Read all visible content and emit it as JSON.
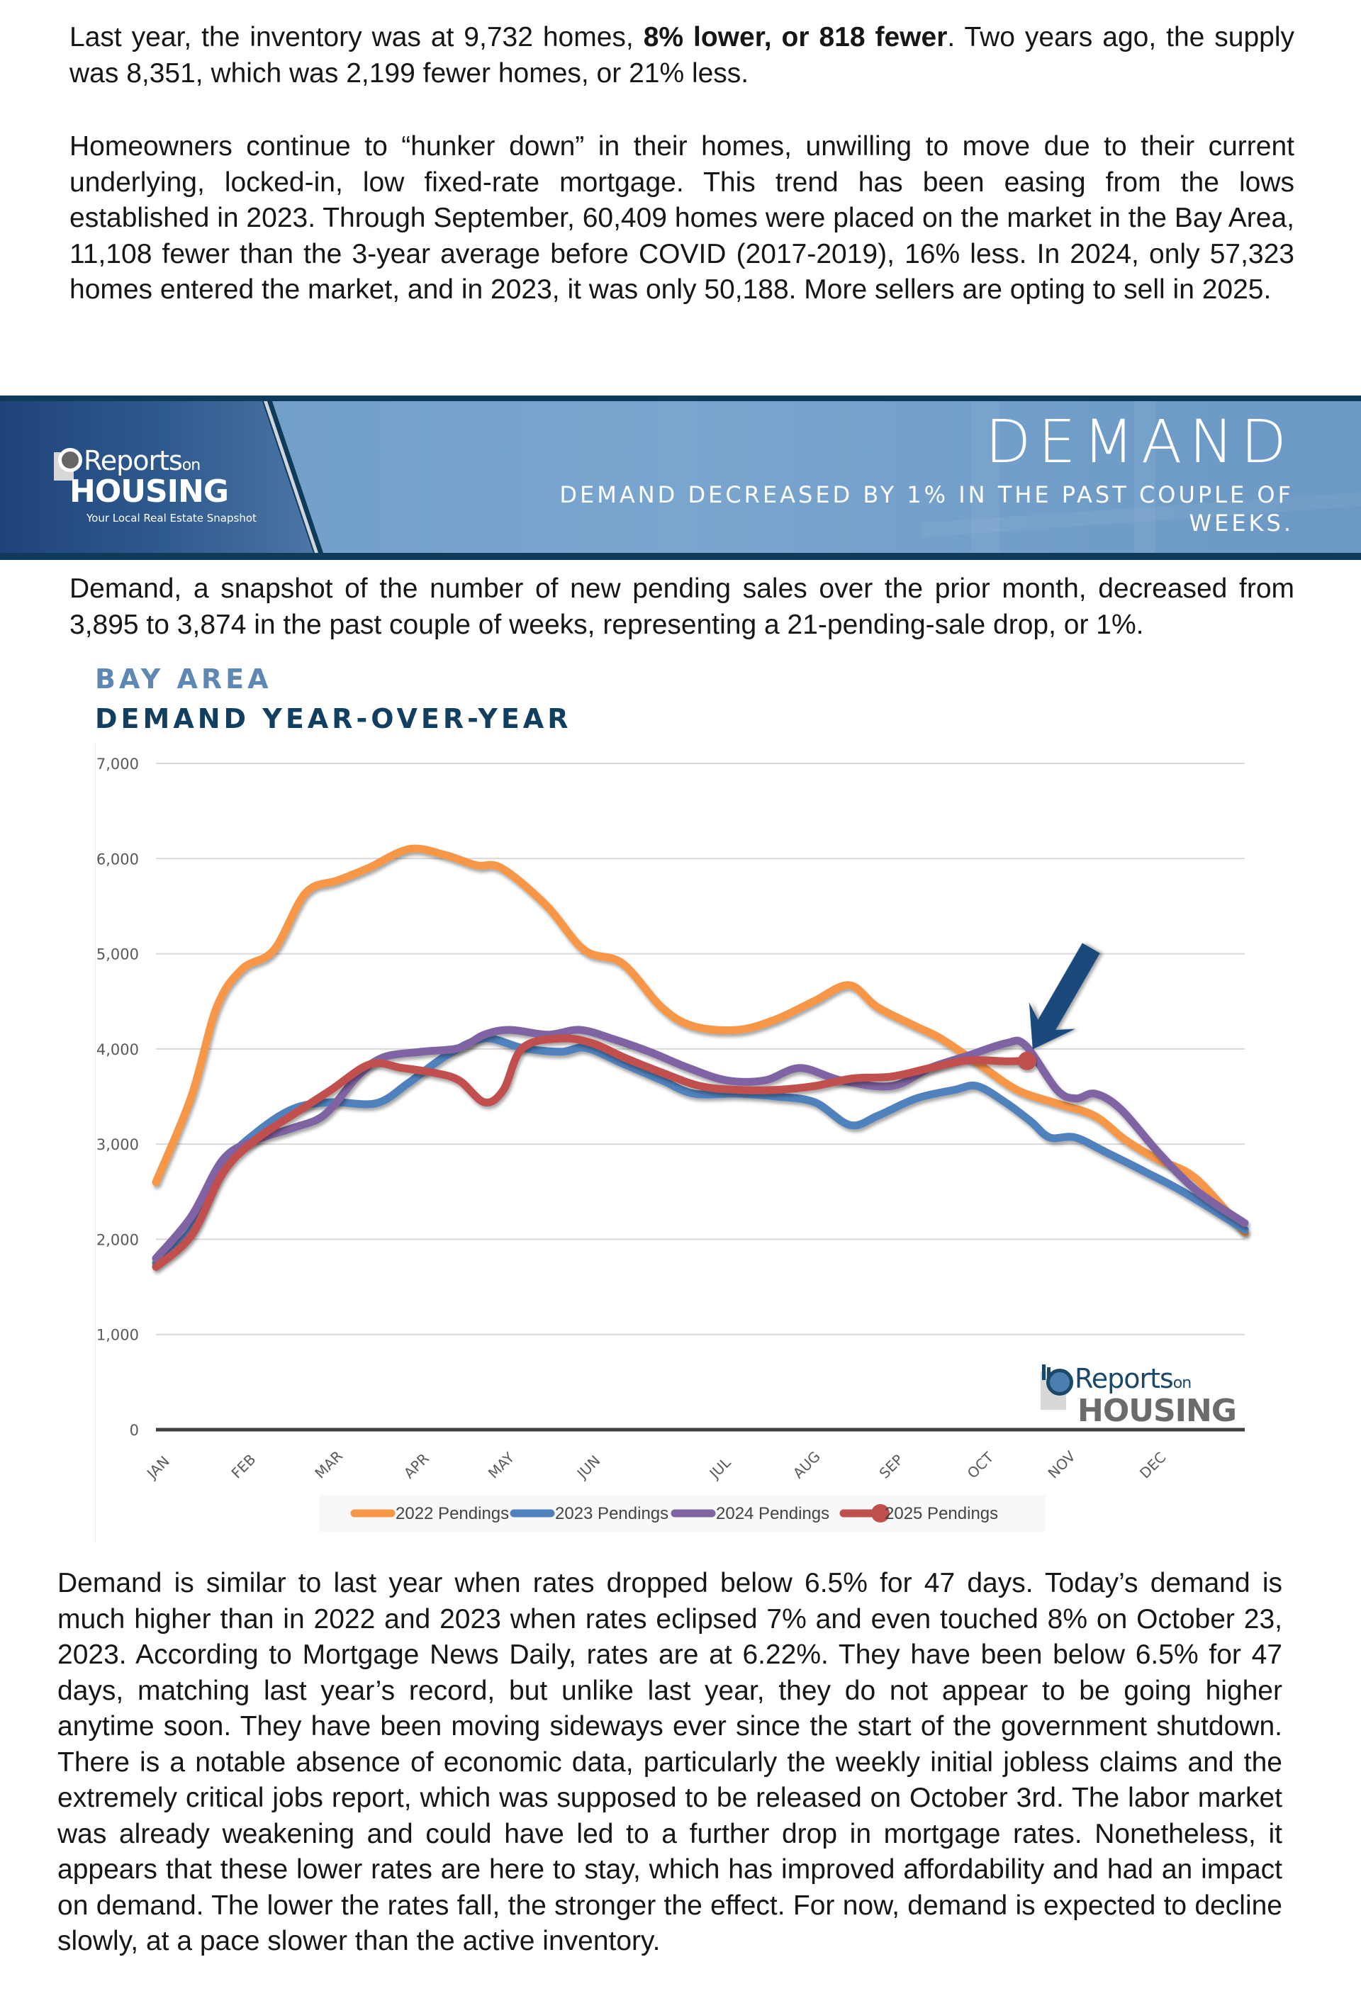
{
  "intro": {
    "p1_parts": [
      "Last year, the inventory was at 9,732 homes, ",
      "8% lower, or 818 fewer",
      ". Two years ago, the supply was 8,351, which was 2,199 fewer homes, or 21% less."
    ],
    "p2": "Homeowners continue to “hunker down” in their homes, unwilling to move due to their current underlying, locked-in, low fixed-rate mortgage. This trend has been easing from the lows established in 2023. Through September, 60,409 homes were placed on the market in the Bay Area, 11,108 fewer than the 3-year average before COVID (2017-2019), 16% less. In 2024, only 57,323 homes entered the market, and in 2023, it was only 50,188. More sellers are opting to sell in 2025."
  },
  "banner": {
    "logo_word1": "Reports",
    "logo_word_on": "on",
    "logo_word2": "HOUSING",
    "logo_tagline": "Your Local Real Estate Snapshot",
    "title": "DEMAND",
    "subtitle": "DEMAND DECREASED BY 1% IN THE PAST COUPLE OF WEEKS.",
    "colors": {
      "dark": "#0f3a5a",
      "left_panel": "#2f5a8e",
      "right_panel": "#79a5cf"
    }
  },
  "demand_intro": "Demand, a snapshot of the number of new pending sales over the prior month, decreased from 3,895 to 3,874 in the past couple of weeks, representing a 21-pending-sale drop, or 1%.",
  "chart_heading": {
    "region": "BAY AREA",
    "title": "DEMAND YEAR-OVER-YEAR"
  },
  "chart_logo": {
    "word1": "Reports",
    "word_on": "on",
    "word2": "HOUSING"
  },
  "chart_data": {
    "type": "line",
    "title": "DEMAND YEAR-OVER-YEAR",
    "subtitle": "BAY AREA",
    "xlabel": "",
    "ylabel": "",
    "x_unit": "month index (0 = JAN, 12 = end of DEC)",
    "xlim": [
      0,
      12
    ],
    "ylim": [
      0,
      7000
    ],
    "yticks": [
      0,
      1000,
      2000,
      3000,
      4000,
      5000,
      6000,
      7000
    ],
    "ytick_labels": [
      "0",
      "1,000",
      "2,000",
      "3,000",
      "4,000",
      "5,000",
      "6,000",
      "7,000"
    ],
    "xtick_labels": [
      "JAN",
      "FEB",
      "MAR",
      "APR",
      "MAY",
      "JUN",
      "JUL",
      "AUG",
      "SEP",
      "OCT",
      "NOV",
      "DEC"
    ],
    "xtick_positions": [
      0,
      0.93,
      1.85,
      2.83,
      3.76,
      4.74,
      6.2,
      7.12,
      8.07,
      9.04,
      9.93,
      10.94
    ],
    "grid": true,
    "legend_position": "bottom",
    "annotation": "arrow pointing to the latest 2025 reading (3,874)",
    "series": [
      {
        "name": "2022 Pendings",
        "color": "#f79646",
        "points": [
          [
            0,
            2600
          ],
          [
            0.39,
            3500
          ],
          [
            0.67,
            4440
          ],
          [
            0.95,
            4840
          ],
          [
            1.3,
            5040
          ],
          [
            1.65,
            5640
          ],
          [
            2.0,
            5770
          ],
          [
            2.34,
            5900
          ],
          [
            2.79,
            6100
          ],
          [
            3.18,
            6040
          ],
          [
            3.53,
            5930
          ],
          [
            3.81,
            5900
          ],
          [
            4.3,
            5510
          ],
          [
            4.72,
            5040
          ],
          [
            5.14,
            4900
          ],
          [
            5.57,
            4440
          ],
          [
            5.92,
            4240
          ],
          [
            6.41,
            4200
          ],
          [
            6.83,
            4310
          ],
          [
            7.25,
            4500
          ],
          [
            7.64,
            4670
          ],
          [
            7.95,
            4440
          ],
          [
            8.37,
            4240
          ],
          [
            8.65,
            4110
          ],
          [
            9.07,
            3840
          ],
          [
            9.49,
            3570
          ],
          [
            9.92,
            3430
          ],
          [
            10.34,
            3300
          ],
          [
            10.69,
            3040
          ],
          [
            11.04,
            2840
          ],
          [
            11.46,
            2640
          ],
          [
            12.0,
            2070
          ]
        ]
      },
      {
        "name": "2023 Pendings",
        "color": "#4f81bd",
        "points": [
          [
            0,
            1750
          ],
          [
            0.39,
            2100
          ],
          [
            0.74,
            2770
          ],
          [
            1.09,
            3110
          ],
          [
            1.51,
            3370
          ],
          [
            1.93,
            3440
          ],
          [
            2.43,
            3430
          ],
          [
            2.78,
            3640
          ],
          [
            3.2,
            3930
          ],
          [
            3.62,
            4110
          ],
          [
            4.04,
            4010
          ],
          [
            4.46,
            3970
          ],
          [
            4.74,
            4010
          ],
          [
            5.16,
            3840
          ],
          [
            5.58,
            3670
          ],
          [
            5.93,
            3530
          ],
          [
            6.42,
            3530
          ],
          [
            6.84,
            3500
          ],
          [
            7.26,
            3440
          ],
          [
            7.65,
            3200
          ],
          [
            7.96,
            3300
          ],
          [
            8.38,
            3480
          ],
          [
            8.8,
            3570
          ],
          [
            9.05,
            3610
          ],
          [
            9.36,
            3440
          ],
          [
            9.64,
            3240
          ],
          [
            9.85,
            3070
          ],
          [
            10.13,
            3070
          ],
          [
            10.48,
            2910
          ],
          [
            10.9,
            2710
          ],
          [
            11.32,
            2500
          ],
          [
            12.0,
            2100
          ]
        ]
      },
      {
        "name": "2024 Pendings",
        "color": "#8064a2",
        "points": [
          [
            0,
            1800
          ],
          [
            0.39,
            2240
          ],
          [
            0.74,
            2840
          ],
          [
            1.09,
            3040
          ],
          [
            1.51,
            3170
          ],
          [
            1.86,
            3310
          ],
          [
            2.22,
            3710
          ],
          [
            2.5,
            3910
          ],
          [
            2.92,
            3970
          ],
          [
            3.34,
            4010
          ],
          [
            3.62,
            4150
          ],
          [
            3.9,
            4200
          ],
          [
            4.32,
            4150
          ],
          [
            4.67,
            4200
          ],
          [
            5.02,
            4110
          ],
          [
            5.44,
            3970
          ],
          [
            5.87,
            3800
          ],
          [
            6.29,
            3670
          ],
          [
            6.71,
            3670
          ],
          [
            7.1,
            3800
          ],
          [
            7.55,
            3670
          ],
          [
            8.11,
            3610
          ],
          [
            8.53,
            3800
          ],
          [
            8.95,
            3930
          ],
          [
            9.37,
            4060
          ],
          [
            9.58,
            4040
          ],
          [
            9.93,
            3570
          ],
          [
            10.14,
            3480
          ],
          [
            10.35,
            3530
          ],
          [
            10.63,
            3370
          ],
          [
            11.05,
            2910
          ],
          [
            11.47,
            2510
          ],
          [
            12.0,
            2170
          ]
        ]
      },
      {
        "name": "2025 Pendings",
        "color": "#c0504d",
        "marker_last": true,
        "points": [
          [
            0,
            1710
          ],
          [
            0.39,
            2040
          ],
          [
            0.74,
            2700
          ],
          [
            1.09,
            3040
          ],
          [
            1.51,
            3310
          ],
          [
            1.93,
            3570
          ],
          [
            2.36,
            3840
          ],
          [
            2.71,
            3800
          ],
          [
            3.06,
            3750
          ],
          [
            3.34,
            3670
          ],
          [
            3.62,
            3440
          ],
          [
            3.83,
            3570
          ],
          [
            4.04,
            4010
          ],
          [
            4.46,
            4110
          ],
          [
            4.81,
            4060
          ],
          [
            5.16,
            3910
          ],
          [
            5.58,
            3750
          ],
          [
            6.0,
            3610
          ],
          [
            6.42,
            3570
          ],
          [
            6.84,
            3570
          ],
          [
            7.26,
            3610
          ],
          [
            7.68,
            3690
          ],
          [
            8.11,
            3710
          ],
          [
            8.53,
            3800
          ],
          [
            8.95,
            3880
          ],
          [
            9.37,
            3870
          ],
          [
            9.6,
            3874
          ]
        ]
      }
    ]
  },
  "closing": "Demand is similar to last year when rates dropped below 6.5% for 47 days. Today’s demand is much higher than in 2022 and 2023 when rates eclipsed 7% and even touched 8% on October 23, 2023. According to Mortgage News Daily, rates are at 6.22%. They have been below 6.5% for 47 days, matching last year’s record, but unlike last year, they do not appear to be going higher anytime soon. They have been moving sideways ever since the start of the government shutdown. There is a notable absence of economic data, particularly the weekly initial jobless claims and the extremely critical jobs report, which was supposed to be released on October 3rd. The labor market was already weakening and could have led to a further drop in mortgage rates. Nonetheless, it appears that these lower rates are here to stay, which has improved affordability and had an impact on demand. The lower the rates fall, the stronger the effect. For now, demand is expected to decline slowly, at a pace slower than the active inventory."
}
